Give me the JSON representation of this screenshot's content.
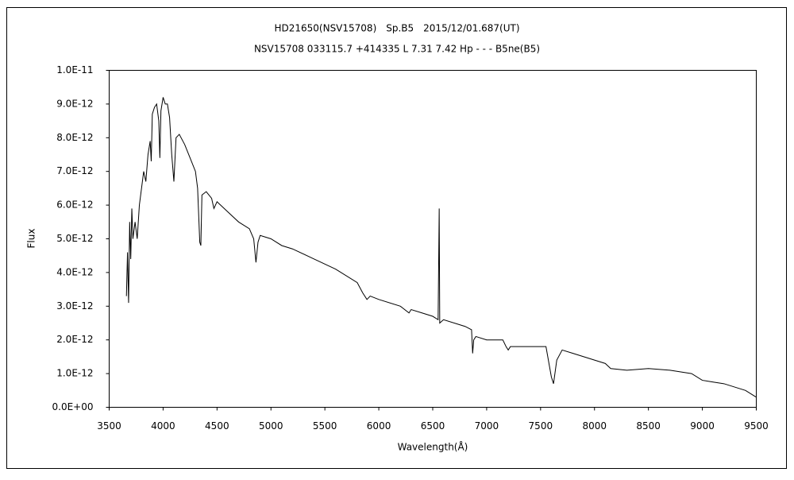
{
  "chart_data": {
    "type": "line",
    "title": "HD21650(NSV15708)　Sp.B5　2015/12/01.687(UT)",
    "subtitle": "NSV15708 033115.7 +414335 L 7.31 7.42 Hp - - - B5ne(B5)",
    "x_label": "Wavelength(Å)",
    "y_label": "Flux",
    "xlim": [
      3500,
      9500
    ],
    "xticks": [
      3500,
      4000,
      4500,
      5000,
      5500,
      6000,
      6500,
      7000,
      7500,
      8000,
      8500,
      9000,
      9500
    ],
    "ylim": [
      0,
      1e-11
    ],
    "yticks": [
      {
        "value": 0,
        "label": "0.0E+00"
      },
      {
        "value": 1e-12,
        "label": "1.0E-12"
      },
      {
        "value": 2e-12,
        "label": "2.0E-12"
      },
      {
        "value": 3e-12,
        "label": "3.0E-12"
      },
      {
        "value": 4e-12,
        "label": "4.0E-12"
      },
      {
        "value": 5e-12,
        "label": "5.0E-12"
      },
      {
        "value": 6e-12,
        "label": "6.0E-12"
      },
      {
        "value": 7e-12,
        "label": "7.0E-12"
      },
      {
        "value": 8e-12,
        "label": "8.0E-12"
      },
      {
        "value": 9e-12,
        "label": "9.0E-12"
      },
      {
        "value": 1e-11,
        "label": "1.0E-11"
      }
    ],
    "grid": false,
    "series": [
      {
        "color": "#000000",
        "x": [
          3660,
          3670,
          3680,
          3690,
          3700,
          3710,
          3720,
          3740,
          3760,
          3780,
          3800,
          3820,
          3840,
          3860,
          3880,
          3890,
          3900,
          3920,
          3940,
          3960,
          3970,
          3980,
          4000,
          4020,
          4040,
          4060,
          4080,
          4100,
          4120,
          4150,
          4200,
          4250,
          4300,
          4320,
          4340,
          4350,
          4360,
          4400,
          4450,
          4471,
          4500,
          4600,
          4700,
          4800,
          4840,
          4861,
          4880,
          4900,
          5000,
          5100,
          5200,
          5400,
          5600,
          5800,
          5850,
          5890,
          5920,
          6000,
          6200,
          6280,
          6300,
          6400,
          6500,
          6550,
          6560,
          6565,
          6600,
          6800,
          6860,
          6870,
          6880,
          6900,
          7000,
          7150,
          7180,
          7200,
          7220,
          7300,
          7400,
          7550,
          7600,
          7620,
          7650,
          7700,
          7800,
          7900,
          8000,
          8100,
          8150,
          8300,
          8500,
          8700,
          8800,
          8900,
          9000,
          9100,
          9200,
          9300,
          9400,
          9450,
          9500
        ],
        "values": [
          3.3e-12,
          4.6e-12,
          3.1e-12,
          5.5e-12,
          4.4e-12,
          5.9e-12,
          5e-12,
          5.5e-12,
          5e-12,
          6e-12,
          6.5e-12,
          7e-12,
          6.7e-12,
          7.5e-12,
          7.9e-12,
          7.3e-12,
          8.7e-12,
          8.9e-12,
          9e-12,
          8.5e-12,
          7.4e-12,
          8.8e-12,
          9.2e-12,
          9e-12,
          9e-12,
          8.6e-12,
          7.5e-12,
          6.7e-12,
          8e-12,
          8.1e-12,
          7.8e-12,
          7.4e-12,
          7e-12,
          6.5e-12,
          4.9e-12,
          4.8e-12,
          6.3e-12,
          6.4e-12,
          6.2e-12,
          5.9e-12,
          6.1e-12,
          5.8e-12,
          5.5e-12,
          5.3e-12,
          5e-12,
          4.3e-12,
          4.9e-12,
          5.1e-12,
          5e-12,
          4.8e-12,
          4.7e-12,
          4.4e-12,
          4.1e-12,
          3.7e-12,
          3.4e-12,
          3.2e-12,
          3.3e-12,
          3.2e-12,
          3e-12,
          2.8e-12,
          2.9e-12,
          2.8e-12,
          2.7e-12,
          2.6e-12,
          5.9e-12,
          2.5e-12,
          2.6e-12,
          2.4e-12,
          2.3e-12,
          1.6e-12,
          2e-12,
          2.1e-12,
          2e-12,
          2e-12,
          1.8e-12,
          1.7e-12,
          1.8e-12,
          1.8e-12,
          1.8e-12,
          1.8e-12,
          9e-13,
          7e-13,
          1.4e-12,
          1.7e-12,
          1.6e-12,
          1.5e-12,
          1.4e-12,
          1.3e-12,
          1.15e-12,
          1.1e-12,
          1.15e-12,
          1.1e-12,
          1.05e-12,
          1e-12,
          8e-13,
          7.5e-13,
          7e-13,
          6e-13,
          5e-13,
          4e-13,
          3e-13
        ]
      }
    ]
  }
}
